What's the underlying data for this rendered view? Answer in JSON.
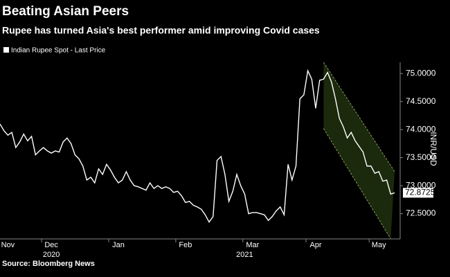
{
  "chart_data": {
    "type": "line",
    "title": "Beating Asian Peers",
    "subtitle": "Rupee has turned Asia's best performer amid improving Covid cases",
    "y_axis_label": "INR/USD",
    "source": "Source: Bloomberg News",
    "categories": [
      null,
      null,
      "Nov",
      null,
      null,
      null,
      null,
      null,
      null,
      null,
      null,
      null,
      null,
      "Dec",
      null,
      null,
      null,
      null,
      null,
      null,
      null,
      null,
      null,
      null,
      null,
      null,
      null,
      null,
      null,
      null,
      "Jan",
      null,
      null,
      null,
      null,
      null,
      null,
      null,
      null,
      null,
      null,
      null,
      null,
      null,
      null,
      null,
      null,
      "Feb",
      null,
      null,
      null,
      null,
      null,
      null,
      null,
      null,
      null,
      null,
      null,
      null,
      null,
      null,
      null,
      null,
      "Mar",
      null,
      null,
      null,
      null,
      null,
      null,
      null,
      null,
      null,
      null,
      null,
      null,
      null,
      null,
      null,
      "Apr",
      null,
      null,
      null,
      null,
      null,
      null,
      null,
      null,
      null,
      null,
      null,
      null,
      null,
      null,
      null,
      "May",
      null,
      null,
      null,
      null
    ],
    "category_years": [
      null,
      null,
      null,
      null,
      null,
      null,
      null,
      null,
      null,
      null,
      null,
      null,
      null,
      "2020",
      null,
      null,
      null,
      null,
      null,
      null,
      null,
      null,
      null,
      null,
      null,
      null,
      null,
      null,
      null,
      null,
      null,
      null,
      null,
      null,
      null,
      null,
      null,
      null,
      null,
      null,
      null,
      null,
      null,
      null,
      null,
      null,
      null,
      null,
      null,
      null,
      null,
      null,
      null,
      null,
      null,
      null,
      null,
      null,
      null,
      null,
      null,
      null,
      "2021",
      null,
      null,
      null,
      null,
      null,
      null,
      null,
      null,
      null,
      null,
      null,
      null,
      null,
      null,
      null,
      null,
      null,
      null,
      null,
      null,
      null,
      null,
      null,
      null,
      null,
      null,
      null,
      null,
      null,
      null,
      null,
      null,
      null,
      null,
      null,
      null,
      null,
      null
    ],
    "series": [
      {
        "name": "Indian Rupee Spot - Last Price",
        "color": "#ffffff",
        "values": [
          74.1,
          73.98,
          73.9,
          73.95,
          73.68,
          73.78,
          73.92,
          73.8,
          73.88,
          73.55,
          73.62,
          73.68,
          73.62,
          73.58,
          73.62,
          73.6,
          73.78,
          73.85,
          73.75,
          73.55,
          73.48,
          73.35,
          73.1,
          73.15,
          73.05,
          73.3,
          73.2,
          73.38,
          73.28,
          73.15,
          73.05,
          73.1,
          73.25,
          73.1,
          73.0,
          72.98,
          72.95,
          72.92,
          73.05,
          72.95,
          73.0,
          72.95,
          72.98,
          72.95,
          72.88,
          72.9,
          72.82,
          72.7,
          72.72,
          72.65,
          72.62,
          72.58,
          72.48,
          72.35,
          72.45,
          73.45,
          73.52,
          73.2,
          72.72,
          72.9,
          73.2,
          73.0,
          72.85,
          72.5,
          72.52,
          72.52,
          72.5,
          72.48,
          72.38,
          72.45,
          72.55,
          72.62,
          72.48,
          73.38,
          73.1,
          73.35,
          74.55,
          74.62,
          75.05,
          74.9,
          74.38,
          74.88,
          74.9,
          75.02,
          74.85,
          74.55,
          74.2,
          74.05,
          73.85,
          73.95,
          73.8,
          73.7,
          73.6,
          73.35,
          73.35,
          73.22,
          73.25,
          73.08,
          73.1,
          72.85,
          72.8725
        ],
        "last_value_label": "72.8725"
      }
    ],
    "channel": {
      "color": "#1b2a0c",
      "edge_color": "#8a9a60",
      "upper": {
        "x": [
          82,
          100
        ],
        "values": [
          75.2,
          73.25
        ]
      },
      "lower": {
        "x": [
          82,
          99
        ],
        "values": [
          74.02,
          72.05
        ]
      }
    },
    "ylim": [
      72.05,
      75.2
    ],
    "yticks": [
      {
        "value": 72.5,
        "label": "72.5000"
      },
      {
        "value": 73,
        "label": "73.0000"
      },
      {
        "value": 73.5,
        "label": "73.5000"
      },
      {
        "value": 74,
        "label": "74.0000"
      },
      {
        "value": 74.5,
        "label": "74.5000"
      },
      {
        "value": 75,
        "label": "75.0000"
      }
    ],
    "y_axis_side": "right",
    "grid": false
  }
}
